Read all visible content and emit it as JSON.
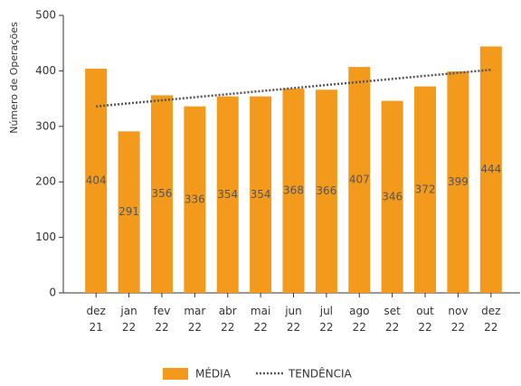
{
  "chart_data": {
    "type": "bar",
    "y_label": "Número de Operações",
    "categories": [
      "dez 21",
      "jan 22",
      "fev 22",
      "mar 22",
      "abr 22",
      "mai 22",
      "jun 22",
      "jul 22",
      "ago 22",
      "set 22",
      "out 22",
      "nov 22",
      "dez 22"
    ],
    "series": [
      {
        "name": "MÉDIA",
        "color": "#f39a1d",
        "values": [
          404,
          291,
          356,
          336,
          354,
          354,
          368,
          366,
          407,
          346,
          372,
          399,
          444
        ]
      },
      {
        "name": "TENDÊNCIA",
        "type": "line",
        "color": "#555555",
        "values": [
          336,
          341.5,
          347,
          352.5,
          358,
          363.5,
          369,
          374.5,
          380,
          385.5,
          391,
          396.5,
          402
        ]
      }
    ],
    "ylim": [
      0,
      500
    ],
    "yticks": [
      0,
      100,
      200,
      300,
      400,
      500
    ]
  }
}
